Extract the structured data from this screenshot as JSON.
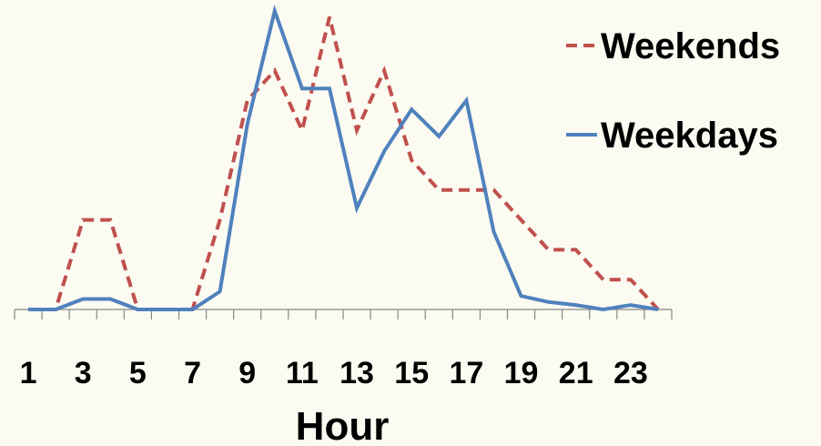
{
  "chart_data": {
    "type": "line",
    "xlabel": "Hour",
    "ylabel": "",
    "x": [
      1,
      2,
      3,
      4,
      5,
      6,
      7,
      8,
      9,
      10,
      11,
      12,
      13,
      14,
      15,
      16,
      17,
      18,
      19,
      20,
      21,
      22,
      23,
      24
    ],
    "tick_labels": [
      "1",
      "3",
      "5",
      "7",
      "9",
      "11",
      "13",
      "15",
      "17",
      "19",
      "21",
      "23"
    ],
    "y_axis_visible": false,
    "ylim": [
      0,
      100
    ],
    "grid": false,
    "legend_position": "top-right",
    "series": [
      {
        "name": "Weekends",
        "color": "#c0504d",
        "line_style": "dashed",
        "values": [
          0,
          0,
          30,
          30,
          0,
          0,
          0,
          30,
          70,
          80,
          60,
          98,
          60,
          80,
          50,
          40,
          40,
          40,
          30,
          20,
          20,
          10,
          10,
          0
        ]
      },
      {
        "name": "Weekdays",
        "color": "#4f81bd",
        "line_style": "solid",
        "values": [
          0,
          0,
          3.5,
          3.5,
          0,
          0,
          0,
          6,
          62,
          100,
          74,
          74,
          34,
          53,
          67,
          58,
          70,
          26,
          4.5,
          2.5,
          1.5,
          0,
          1.5,
          0
        ]
      }
    ]
  }
}
